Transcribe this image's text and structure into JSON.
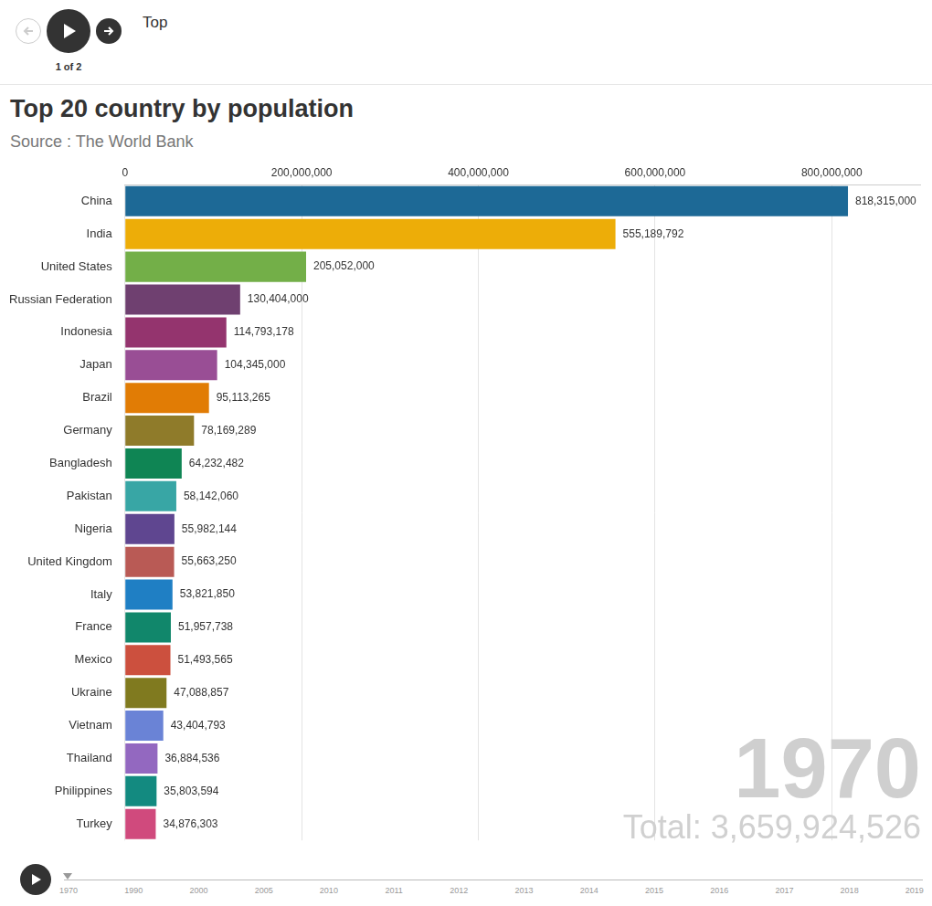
{
  "header": {
    "label": "Top",
    "page": "1 of 2"
  },
  "chart_data": {
    "type": "bar",
    "orientation": "horizontal",
    "title": "Top 20 country by population",
    "subtitle": "Source : The World Bank",
    "categories": [
      "China",
      "India",
      "United States",
      "Russian Federation",
      "Indonesia",
      "Japan",
      "Brazil",
      "Germany",
      "Bangladesh",
      "Pakistan",
      "Nigeria",
      "United Kingdom",
      "Italy",
      "France",
      "Mexico",
      "Ukraine",
      "Vietnam",
      "Thailand",
      "Philippines",
      "Turkey"
    ],
    "values": [
      818315000,
      555189792,
      205052000,
      130404000,
      114793178,
      104345000,
      95113265,
      78169289,
      64232482,
      58142060,
      55982144,
      55663250,
      53821850,
      51957738,
      51493565,
      47088857,
      43404793,
      36884536,
      35803594,
      34876303
    ],
    "value_labels": [
      "818,315,000",
      "555,189,792",
      "205,052,000",
      "130,404,000",
      "114,793,178",
      "104,345,000",
      "95,113,265",
      "78,169,289",
      "64,232,482",
      "58,142,060",
      "55,982,144",
      "55,663,250",
      "53,821,850",
      "51,957,738",
      "51,493,565",
      "47,088,857",
      "43,404,793",
      "36,884,536",
      "35,803,594",
      "34,876,303"
    ],
    "colors": [
      "#1d6996",
      "#edad08",
      "#73af48",
      "#6f4070",
      "#94346e",
      "#994e95",
      "#e17c05",
      "#8f7b2a",
      "#0f8554",
      "#38a6a5",
      "#5f4690",
      "#b95a55",
      "#1f7fc4",
      "#11876b",
      "#cc503e",
      "#807a1f",
      "#6a83d6",
      "#9368c0",
      "#138a80",
      "#d04a7d"
    ],
    "xlim": [
      0,
      900000000
    ],
    "xticks": [
      0,
      {
        "value": 200000000,
        "label": "200,000,000"
      },
      {
        "value": 400000000,
        "label": "400,000,000"
      },
      {
        "value": 600000000,
        "label": "600,000,000"
      },
      {
        "value": 800000000,
        "label": "800,000,000"
      }
    ],
    "grid": true,
    "data_labels": true,
    "annotations": [
      "1970",
      "Total: 3,659,924,526"
    ]
  },
  "timeline": {
    "ticks": [
      1970,
      1990,
      2000,
      2005,
      2010,
      2011,
      2012,
      2013,
      2014,
      2015,
      2016,
      2017,
      2018,
      2019
    ]
  }
}
